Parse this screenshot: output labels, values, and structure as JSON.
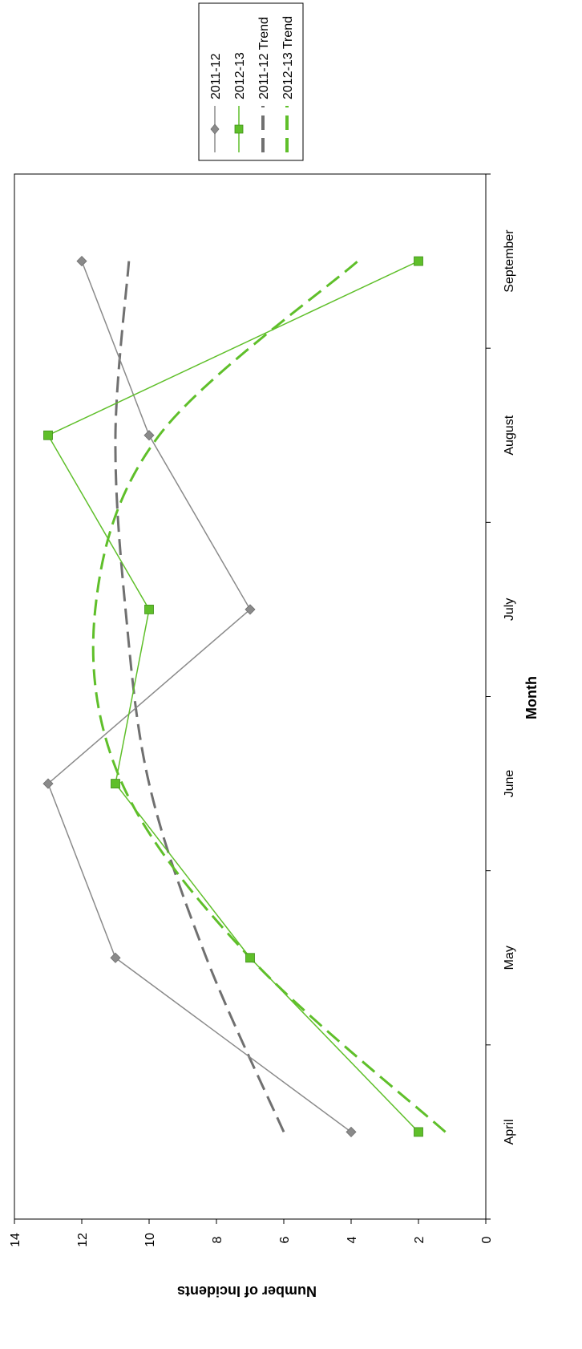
{
  "chart_data": {
    "type": "line",
    "orientation": "rotated-90-clockwise",
    "categories": [
      "April",
      "May",
      "June",
      "July",
      "August",
      "September"
    ],
    "xlabel": "Month",
    "ylabel": "Number of Incidents",
    "ylim": [
      0,
      14
    ],
    "yticks": [
      0,
      2,
      4,
      6,
      8,
      10,
      12,
      14
    ],
    "grid": false,
    "legend_position": "top-right",
    "series": [
      {
        "name": "2011-12",
        "values": [
          4,
          11,
          13,
          7,
          10,
          12
        ],
        "color": "#8a8a8a",
        "marker": "diamond",
        "style": "solid"
      },
      {
        "name": "2012-13",
        "values": [
          2,
          7,
          11,
          10,
          13,
          2
        ],
        "color": "#5fbf2a",
        "marker": "square",
        "style": "solid"
      }
    ],
    "trends": [
      {
        "name": "2011-12 Trend",
        "values": [
          6.0,
          8.3,
          10.0,
          10.7,
          11.0,
          10.6
        ],
        "color": "#707070",
        "style": "dashed"
      },
      {
        "name": "2012-13 Trend",
        "values": [
          1.2,
          7.0,
          10.8,
          11.6,
          9.7,
          3.8
        ],
        "color": "#5fbf2a",
        "style": "dashed"
      }
    ]
  }
}
